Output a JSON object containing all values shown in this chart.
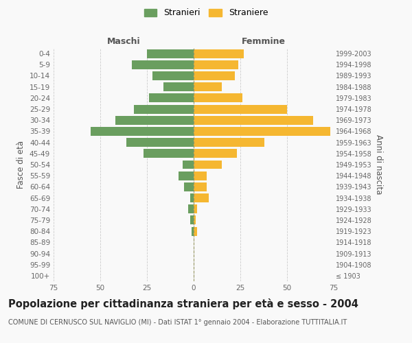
{
  "age_groups": [
    "100+",
    "95-99",
    "90-94",
    "85-89",
    "80-84",
    "75-79",
    "70-74",
    "65-69",
    "60-64",
    "55-59",
    "50-54",
    "45-49",
    "40-44",
    "35-39",
    "30-34",
    "25-29",
    "20-24",
    "15-19",
    "10-14",
    "5-9",
    "0-4"
  ],
  "birth_years": [
    "≤ 1903",
    "1904-1908",
    "1909-1913",
    "1914-1918",
    "1919-1923",
    "1924-1928",
    "1929-1933",
    "1934-1938",
    "1939-1943",
    "1944-1948",
    "1949-1953",
    "1954-1958",
    "1959-1963",
    "1964-1968",
    "1969-1973",
    "1974-1978",
    "1979-1983",
    "1984-1988",
    "1989-1993",
    "1994-1998",
    "1999-2003"
  ],
  "males": [
    0,
    0,
    0,
    0,
    1,
    2,
    3,
    2,
    5,
    8,
    6,
    27,
    36,
    55,
    42,
    32,
    24,
    16,
    22,
    33,
    25
  ],
  "females": [
    0,
    0,
    0,
    0,
    2,
    1,
    2,
    8,
    7,
    7,
    15,
    23,
    38,
    73,
    64,
    50,
    26,
    15,
    22,
    24,
    27
  ],
  "male_color": "#6a9e5f",
  "female_color": "#f5b731",
  "background_color": "#f9f9f9",
  "grid_color": "#cccccc",
  "title": "Popolazione per cittadinanza straniera per età e sesso - 2004",
  "subtitle": "COMUNE DI CERNUSCO SUL NAVIGLIO (MI) - Dati ISTAT 1° gennaio 2004 - Elaborazione TUTTITALIA.IT",
  "xlabel_left": "Maschi",
  "xlabel_right": "Femmine",
  "ylabel_left": "Fasce di età",
  "ylabel_right": "Anni di nascita",
  "legend_male": "Stranieri",
  "legend_female": "Straniere",
  "xlim": 75,
  "bar_height": 0.8,
  "center_line_color": "#999966",
  "title_fontsize": 10.5,
  "subtitle_fontsize": 7.0,
  "tick_fontsize": 7.5,
  "label_fontsize": 8.5
}
